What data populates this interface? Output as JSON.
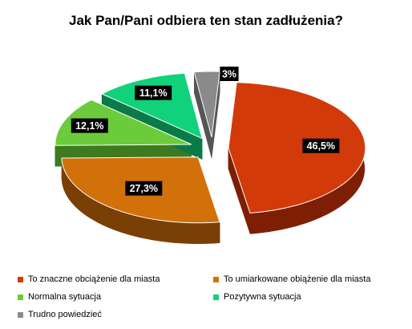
{
  "chart_data": {
    "type": "pie",
    "title": "Jak Pan/Pani odbiera ten stan zadłużenia?",
    "categories": [
      "To znaczne obciążenie dla miasta",
      "To umiarkowane obiążenie dla miasta",
      "Normalna sytuacja",
      "Pozytywna sytuacja",
      "Trudno powiedzieć"
    ],
    "values": [
      46.5,
      27.3,
      12.1,
      11.1,
      3
    ],
    "labels": [
      "46,5%",
      "27,3%",
      "12,1%",
      "11,1%",
      "3%"
    ],
    "colors": [
      "#D23A0A",
      "#D2700A",
      "#6CCB3A",
      "#10D27A",
      "#8A8A8A"
    ],
    "side_colors": [
      "#7E1F05",
      "#7A3F05",
      "#3D7A20",
      "#0A7A47",
      "#555555"
    ],
    "legend_position": "bottom",
    "style": "3d-exploded"
  }
}
